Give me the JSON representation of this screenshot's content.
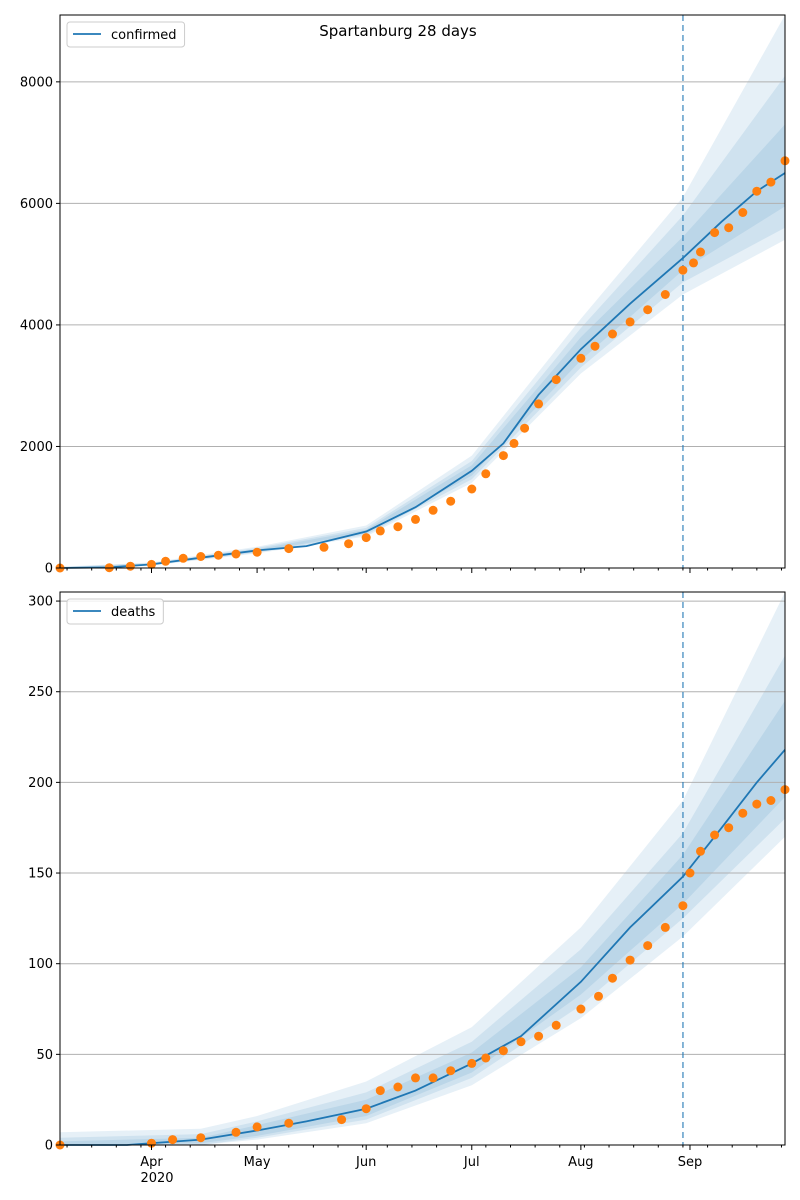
{
  "figure": {
    "title": "Spartanburg 28 days",
    "x_tick_labels": [
      "Apr",
      "May",
      "Jun",
      "Jul",
      "Aug",
      "Sep"
    ],
    "x_year_label": "2020",
    "colors": {
      "model_line": "#1f77b4",
      "observed": "#ff7f0e",
      "band": "#1f77b4",
      "grid": "#b0b0b0",
      "forecast_divider": "#1f77b4"
    }
  },
  "chart_data": [
    {
      "type": "line",
      "name": "confirmed",
      "legend_label": "confirmed",
      "legend_position": "top-left",
      "grid": "horizontal",
      "x_range": [
        "2020-03-06",
        "2020-09-28"
      ],
      "forecast_start": "2020-08-30",
      "ylim": [
        0,
        9100
      ],
      "y_ticks": [
        0,
        2000,
        4000,
        6000,
        8000
      ],
      "model_median": {
        "x": [
          "2020-03-06",
          "2020-03-20",
          "2020-04-01",
          "2020-04-15",
          "2020-05-01",
          "2020-05-15",
          "2020-06-01",
          "2020-06-15",
          "2020-07-01",
          "2020-07-10",
          "2020-07-20",
          "2020-08-01",
          "2020-08-15",
          "2020-08-30",
          "2020-09-10",
          "2020-09-20",
          "2020-09-28"
        ],
        "y": [
          0,
          10,
          60,
          170,
          290,
          360,
          600,
          1000,
          1600,
          2050,
          2850,
          3600,
          4350,
          5100,
          5700,
          6200,
          6500
        ]
      },
      "bands": [
        {
          "x": [
            "2020-03-06",
            "2020-04-01",
            "2020-05-01",
            "2020-06-01",
            "2020-07-01",
            "2020-08-01",
            "2020-08-30",
            "2020-09-28"
          ],
          "lower": [
            0,
            40,
            240,
            520,
            1400,
            3200,
            4500,
            5400
          ],
          "upper": [
            20,
            90,
            350,
            700,
            1850,
            4100,
            6100,
            9100
          ]
        },
        {
          "x": [
            "2020-03-06",
            "2020-04-01",
            "2020-05-01",
            "2020-06-01",
            "2020-07-01",
            "2020-08-01",
            "2020-08-30",
            "2020-09-28"
          ],
          "lower": [
            0,
            45,
            255,
            545,
            1460,
            3300,
            4700,
            5600
          ],
          "upper": [
            15,
            80,
            330,
            660,
            1760,
            3950,
            5800,
            8100
          ]
        },
        {
          "x": [
            "2020-03-06",
            "2020-04-01",
            "2020-05-01",
            "2020-06-01",
            "2020-07-01",
            "2020-08-01",
            "2020-08-30",
            "2020-09-28"
          ],
          "lower": [
            0,
            50,
            270,
            570,
            1520,
            3420,
            4900,
            5950
          ],
          "upper": [
            12,
            72,
            310,
            630,
            1690,
            3800,
            5450,
            7300
          ]
        }
      ],
      "observed": {
        "x": [
          "2020-03-06",
          "2020-03-20",
          "2020-03-26",
          "2020-04-01",
          "2020-04-05",
          "2020-04-10",
          "2020-04-15",
          "2020-04-20",
          "2020-04-25",
          "2020-05-01",
          "2020-05-10",
          "2020-05-20",
          "2020-05-27",
          "2020-06-01",
          "2020-06-05",
          "2020-06-10",
          "2020-06-15",
          "2020-06-20",
          "2020-06-25",
          "2020-07-01",
          "2020-07-05",
          "2020-07-10",
          "2020-07-13",
          "2020-07-16",
          "2020-07-20",
          "2020-07-25",
          "2020-08-01",
          "2020-08-05",
          "2020-08-10",
          "2020-08-15",
          "2020-08-20",
          "2020-08-25",
          "2020-08-30",
          "2020-09-02",
          "2020-09-04",
          "2020-09-08",
          "2020-09-12",
          "2020-09-16",
          "2020-09-20",
          "2020-09-24",
          "2020-09-28"
        ],
        "y": [
          0,
          5,
          30,
          60,
          110,
          160,
          190,
          210,
          230,
          260,
          320,
          340,
          400,
          500,
          610,
          680,
          800,
          950,
          1100,
          1300,
          1550,
          1850,
          2050,
          2300,
          2700,
          3100,
          3450,
          3650,
          3850,
          4050,
          4250,
          4500,
          4900,
          5020,
          5200,
          5520,
          5600,
          5850,
          6200,
          6350,
          6700
        ]
      }
    },
    {
      "type": "line",
      "name": "deaths",
      "legend_label": "deaths",
      "legend_position": "top-left",
      "grid": "horizontal",
      "x_range": [
        "2020-03-06",
        "2020-09-28"
      ],
      "forecast_start": "2020-08-30",
      "ylim": [
        0,
        305
      ],
      "y_ticks": [
        0,
        50,
        100,
        150,
        200,
        250,
        300
      ],
      "model_median": {
        "x": [
          "2020-03-06",
          "2020-03-25",
          "2020-04-15",
          "2020-05-01",
          "2020-05-15",
          "2020-06-01",
          "2020-06-15",
          "2020-07-01",
          "2020-07-15",
          "2020-08-01",
          "2020-08-15",
          "2020-08-30",
          "2020-09-10",
          "2020-09-20",
          "2020-09-28"
        ],
        "y": [
          0,
          0,
          3,
          8,
          13,
          20,
          30,
          45,
          60,
          90,
          120,
          148,
          175,
          200,
          218
        ]
      },
      "bands": [
        {
          "x": [
            "2020-03-06",
            "2020-04-15",
            "2020-05-01",
            "2020-06-01",
            "2020-07-01",
            "2020-08-01",
            "2020-08-30",
            "2020-09-28"
          ],
          "lower": [
            0,
            0,
            3,
            12,
            33,
            70,
            115,
            170
          ],
          "upper": [
            7,
            9,
            16,
            35,
            65,
            120,
            190,
            305
          ]
        },
        {
          "x": [
            "2020-03-06",
            "2020-04-15",
            "2020-05-01",
            "2020-06-01",
            "2020-07-01",
            "2020-08-01",
            "2020-08-30",
            "2020-09-28"
          ],
          "lower": [
            0,
            0,
            4,
            14,
            37,
            77,
            125,
            180
          ],
          "upper": [
            4,
            6,
            13,
            29,
            57,
            108,
            172,
            270
          ]
        },
        {
          "x": [
            "2020-03-06",
            "2020-04-15",
            "2020-05-01",
            "2020-06-01",
            "2020-07-01",
            "2020-08-01",
            "2020-08-30",
            "2020-09-28"
          ],
          "lower": [
            0,
            1,
            5,
            16,
            40,
            83,
            133,
            192
          ],
          "upper": [
            2,
            4,
            11,
            25,
            51,
            98,
            160,
            245
          ]
        }
      ],
      "observed": {
        "x": [
          "2020-03-06",
          "2020-04-01",
          "2020-04-07",
          "2020-04-15",
          "2020-04-25",
          "2020-05-01",
          "2020-05-10",
          "2020-05-25",
          "2020-06-01",
          "2020-06-05",
          "2020-06-10",
          "2020-06-15",
          "2020-06-20",
          "2020-06-25",
          "2020-07-01",
          "2020-07-05",
          "2020-07-10",
          "2020-07-15",
          "2020-07-20",
          "2020-07-25",
          "2020-08-01",
          "2020-08-06",
          "2020-08-10",
          "2020-08-15",
          "2020-08-20",
          "2020-08-25",
          "2020-08-30",
          "2020-09-01",
          "2020-09-04",
          "2020-09-08",
          "2020-09-12",
          "2020-09-16",
          "2020-09-20",
          "2020-09-24",
          "2020-09-28"
        ],
        "y": [
          0,
          1,
          3,
          4,
          7,
          10,
          12,
          14,
          20,
          30,
          32,
          37,
          37,
          41,
          45,
          48,
          52,
          57,
          60,
          66,
          75,
          82,
          92,
          102,
          110,
          120,
          132,
          150,
          162,
          171,
          175,
          183,
          188,
          190,
          196
        ]
      }
    }
  ]
}
